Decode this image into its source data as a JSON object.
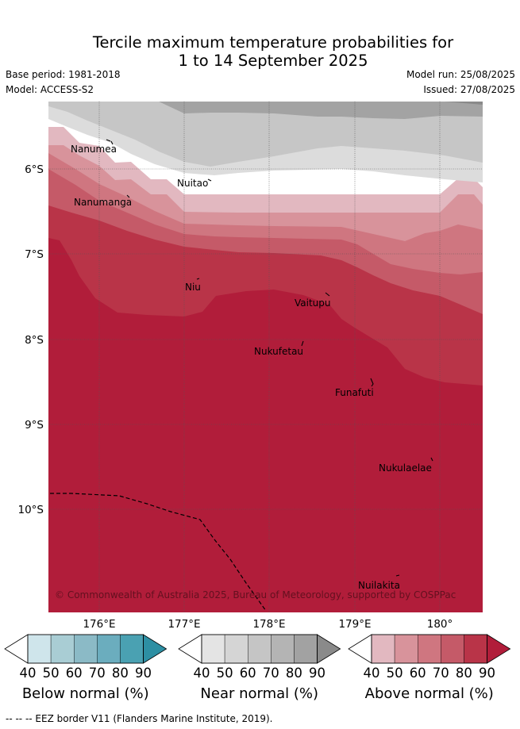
{
  "header": {
    "title_line1": "Tercile maximum temperature probabilities for",
    "title_line2": "1 to 14 September 2025",
    "base_period": "Base period: 1981-2018",
    "model": "Model: ACCESS-S2",
    "model_run": "Model run: 25/08/2025",
    "issued": "Issued: 27/08/2025"
  },
  "map": {
    "lat_ticks": [
      "6°S",
      "7°S",
      "8°S",
      "9°S",
      "10°S"
    ],
    "lon_ticks": [
      "176°E",
      "177°E",
      "178°E",
      "179°E",
      "180°"
    ],
    "places": [
      "Nanumea",
      "Nanumanga",
      "Nuitao",
      "Niu",
      "Vaitupu",
      "Nukufetau",
      "Funafuti",
      "Nukulaelae",
      "Nuilakita"
    ],
    "copyright": "© Commonwealth of Australia 2025, Bureau of Meteorology, supported by COSPPac"
  },
  "colorbars": [
    {
      "title": "Below normal (%)",
      "ticks": [
        "40",
        "50",
        "60",
        "70",
        "80",
        "90"
      ],
      "colors": [
        "#cfe5eb",
        "#a9cdd4",
        "#8bbac6",
        "#6badbe",
        "#4aa1b2",
        "#2d8fa3"
      ]
    },
    {
      "title": "Near normal (%)",
      "ticks": [
        "40",
        "50",
        "60",
        "70",
        "80",
        "90"
      ],
      "colors": [
        "#e4e4e4",
        "#d5d5d5",
        "#c5c5c5",
        "#b4b4b4",
        "#a2a2a2",
        "#8a8a8a"
      ]
    },
    {
      "title": "Above normal (%)",
      "ticks": [
        "40",
        "50",
        "60",
        "70",
        "80",
        "90"
      ],
      "colors": [
        "#e2b8c0",
        "#d8939b",
        "#cf7680",
        "#c55a68",
        "#b93448",
        "#b11d3a"
      ]
    }
  ],
  "footer": "--  --  -- EEZ border V11 (Flanders Marine Institute, 2019)."
}
